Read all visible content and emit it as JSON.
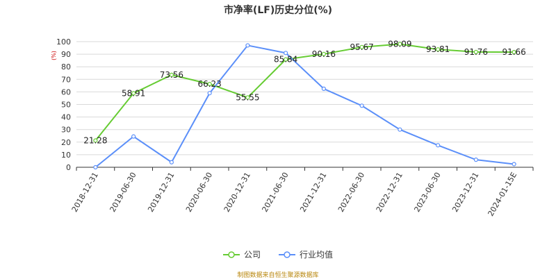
{
  "chart_data": {
    "type": "line",
    "title": "市净率(LF)历史分位(%)",
    "unit_label": "(%)",
    "categories": [
      "2018-12-31",
      "2019-06-30",
      "2019-12-31",
      "2020-06-30",
      "2020-12-31",
      "2021-06-30",
      "2021-12-31",
      "2022-06-30",
      "2022-12-31",
      "2023-06-30",
      "2023-12-31",
      "2024-01-15E"
    ],
    "ylim": [
      0,
      100
    ],
    "yticks": [
      0,
      10,
      20,
      30,
      40,
      50,
      60,
      70,
      80,
      90,
      100
    ],
    "grid": true,
    "legend_position": "bottom",
    "series": [
      {
        "name": "公司",
        "color": "#66cc33",
        "values": [
          21.28,
          58.91,
          73.56,
          66.23,
          55.55,
          85.84,
          90.16,
          95.67,
          98.09,
          93.81,
          91.76,
          91.66
        ],
        "labels": [
          "21.28",
          "58.91",
          "73.56",
          "66.23",
          "55.55",
          "85.84",
          "90.16",
          "95.67",
          "98.09",
          "93.81",
          "91.76",
          "91.66"
        ]
      },
      {
        "name": "行业均值",
        "color": "#5b8ff9",
        "values": [
          0,
          24.5,
          4,
          59,
          97,
          91,
          62.5,
          49,
          30,
          17.5,
          6,
          2.5
        ]
      }
    ]
  },
  "footer": {
    "source": "制图数据来自恒生聚源数据库"
  }
}
